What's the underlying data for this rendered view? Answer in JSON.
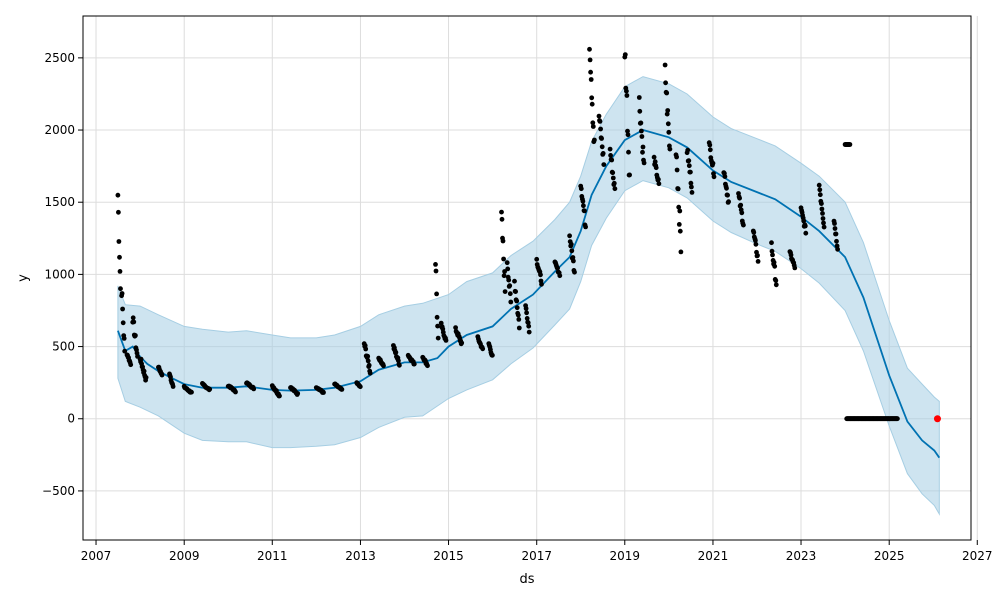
{
  "chart_data": {
    "type": "scatter",
    "title": "",
    "xlabel": "ds",
    "ylabel": "y",
    "x_range": [
      "2006-09-15",
      "2026-11-10"
    ],
    "y_range": [
      -840,
      2790
    ],
    "grid": true,
    "legend": "none",
    "x_ticks": [
      "2007",
      "2009",
      "2011",
      "2013",
      "2015",
      "2017",
      "2019",
      "2021",
      "2023",
      "2025",
      "2027"
    ],
    "y_ticks": [
      -500,
      0,
      500,
      1000,
      1500,
      2000,
      2500
    ],
    "y_tick_labels": [
      "−500",
      "0",
      "500",
      "1000",
      "1500",
      "2000",
      "2500"
    ],
    "colors": {
      "observed": "#000000",
      "forecast": "#0072B2",
      "uncertainty": "#a6cee3",
      "highlight": "#ff0000",
      "grid": "#dddddd"
    },
    "series": [
      {
        "role": "forecast",
        "points": [
          [
            "2007-07-01",
            610
          ],
          [
            "2007-09-01",
            470
          ],
          [
            "2007-11-01",
            500
          ],
          [
            "2008-01-01",
            430
          ],
          [
            "2008-03-01",
            380
          ],
          [
            "2008-06-01",
            330
          ],
          [
            "2008-09-01",
            290
          ],
          [
            "2009-01-01",
            240
          ],
          [
            "2009-06-01",
            215
          ],
          [
            "2010-01-01",
            215
          ],
          [
            "2010-06-01",
            225
          ],
          [
            "2011-01-01",
            200
          ],
          [
            "2011-06-01",
            195
          ],
          [
            "2012-01-01",
            200
          ],
          [
            "2012-06-01",
            215
          ],
          [
            "2013-01-01",
            260
          ],
          [
            "2013-06-01",
            340
          ],
          [
            "2014-01-01",
            390
          ],
          [
            "2014-06-01",
            390
          ],
          [
            "2014-10-01",
            420
          ],
          [
            "2015-01-01",
            500
          ],
          [
            "2015-06-01",
            580
          ],
          [
            "2016-01-01",
            640
          ],
          [
            "2016-06-01",
            760
          ],
          [
            "2016-12-01",
            860
          ],
          [
            "2017-06-01",
            1020
          ],
          [
            "2017-10-01",
            1120
          ],
          [
            "2018-01-01",
            1300
          ],
          [
            "2018-04-01",
            1550
          ],
          [
            "2018-08-01",
            1750
          ],
          [
            "2019-01-01",
            1930
          ],
          [
            "2019-06-01",
            2000
          ],
          [
            "2020-01-01",
            1950
          ],
          [
            "2020-06-01",
            1880
          ],
          [
            "2021-01-01",
            1720
          ],
          [
            "2021-06-01",
            1640
          ],
          [
            "2022-01-01",
            1570
          ],
          [
            "2022-06-01",
            1520
          ],
          [
            "2023-01-01",
            1400
          ],
          [
            "2023-06-01",
            1300
          ],
          [
            "2024-01-01",
            1120
          ],
          [
            "2024-06-01",
            840
          ],
          [
            "2025-01-01",
            300
          ],
          [
            "2025-06-01",
            -20
          ],
          [
            "2025-10-01",
            -150
          ],
          [
            "2026-01-10",
            -220
          ],
          [
            "2026-02-20",
            -270
          ]
        ],
        "band": [
          [
            "2007-07-01",
            280,
            920
          ],
          [
            "2007-09-01",
            120,
            790
          ],
          [
            "2008-01-01",
            80,
            780
          ],
          [
            "2008-06-01",
            20,
            720
          ],
          [
            "2009-01-01",
            -100,
            640
          ],
          [
            "2009-06-01",
            -150,
            620
          ],
          [
            "2010-01-01",
            -160,
            600
          ],
          [
            "2010-06-01",
            -160,
            610
          ],
          [
            "2011-01-01",
            -200,
            580
          ],
          [
            "2011-06-01",
            -200,
            560
          ],
          [
            "2012-01-01",
            -190,
            560
          ],
          [
            "2012-06-01",
            -180,
            580
          ],
          [
            "2013-01-01",
            -130,
            640
          ],
          [
            "2013-06-01",
            -60,
            720
          ],
          [
            "2014-01-01",
            10,
            780
          ],
          [
            "2014-06-01",
            20,
            800
          ],
          [
            "2015-01-01",
            140,
            860
          ],
          [
            "2015-06-01",
            200,
            950
          ],
          [
            "2016-01-01",
            270,
            1010
          ],
          [
            "2016-06-01",
            380,
            1130
          ],
          [
            "2016-12-01",
            490,
            1230
          ],
          [
            "2017-06-01",
            650,
            1380
          ],
          [
            "2017-10-01",
            760,
            1500
          ],
          [
            "2018-01-01",
            950,
            1680
          ],
          [
            "2018-04-01",
            1200,
            1920
          ],
          [
            "2018-08-01",
            1390,
            2110
          ],
          [
            "2019-01-01",
            1580,
            2300
          ],
          [
            "2019-06-01",
            1650,
            2370
          ],
          [
            "2020-01-01",
            1600,
            2320
          ],
          [
            "2020-06-01",
            1530,
            2250
          ],
          [
            "2021-01-01",
            1370,
            2090
          ],
          [
            "2021-06-01",
            1290,
            2010
          ],
          [
            "2022-01-01",
            1210,
            1940
          ],
          [
            "2022-06-01",
            1160,
            1890
          ],
          [
            "2023-01-01",
            1040,
            1770
          ],
          [
            "2023-06-01",
            940,
            1680
          ],
          [
            "2024-01-01",
            750,
            1500
          ],
          [
            "2024-06-01",
            470,
            1220
          ],
          [
            "2025-01-01",
            -50,
            680
          ],
          [
            "2025-06-01",
            -380,
            350
          ],
          [
            "2025-10-01",
            -520,
            240
          ],
          [
            "2026-01-10",
            -600,
            150
          ],
          [
            "2026-02-20",
            -660,
            120
          ]
        ]
      },
      {
        "role": "observed",
        "segments": [
          [
            "2007-07-01",
            1550,
            900,
            22
          ],
          [
            "2007-08-01",
            900,
            450,
            26
          ],
          [
            "2007-09-15",
            450,
            380,
            30
          ],
          [
            "2007-11-01",
            700,
            420,
            40
          ],
          [
            "2008-01-01",
            420,
            270,
            50
          ],
          [
            "2008-06-01",
            360,
            300,
            30
          ],
          [
            "2008-09-01",
            320,
            220,
            30
          ],
          [
            "2009-01-01",
            220,
            180,
            60
          ],
          [
            "2009-06-01",
            240,
            200,
            60
          ],
          [
            "2010-01-01",
            230,
            190,
            60
          ],
          [
            "2010-06-01",
            250,
            210,
            60
          ],
          [
            "2011-01-01",
            230,
            160,
            60
          ],
          [
            "2011-06-01",
            220,
            170,
            60
          ],
          [
            "2012-01-01",
            220,
            180,
            60
          ],
          [
            "2012-06-01",
            240,
            200,
            60
          ],
          [
            "2012-12-01",
            250,
            220,
            30
          ],
          [
            "2013-02-01",
            520,
            330,
            50
          ],
          [
            "2013-06-01",
            420,
            370,
            40
          ],
          [
            "2013-10-01",
            500,
            380,
            50
          ],
          [
            "2014-02-01",
            440,
            380,
            50
          ],
          [
            "2014-06-01",
            430,
            370,
            40
          ],
          [
            "2014-09-15",
            1110,
            500,
            22
          ],
          [
            "2014-11-01",
            650,
            540,
            40
          ],
          [
            "2015-03-01",
            620,
            520,
            50
          ],
          [
            "2015-09-01",
            560,
            480,
            40
          ],
          [
            "2015-12-01",
            520,
            430,
            30
          ],
          [
            "2016-03-15",
            1400,
            900,
            30
          ],
          [
            "2016-05-01",
            1100,
            800,
            30
          ],
          [
            "2016-07-01",
            950,
            650,
            40
          ],
          [
            "2016-10-01",
            780,
            620,
            30
          ],
          [
            "2017-01-01",
            1100,
            950,
            40
          ],
          [
            "2017-06-01",
            1080,
            1000,
            40
          ],
          [
            "2017-10-01",
            1260,
            1030,
            40
          ],
          [
            "2018-01-01",
            1640,
            1340,
            40
          ],
          [
            "2018-03-15",
            2640,
            1870,
            40
          ],
          [
            "2018-06-01",
            2100,
            1780,
            40
          ],
          [
            "2018-09-01",
            1860,
            1580,
            40
          ],
          [
            "2019-01-01",
            2570,
            1700,
            40
          ],
          [
            "2019-05-01",
            2200,
            1750,
            40
          ],
          [
            "2019-09-01",
            1800,
            1620,
            40
          ],
          [
            "2019-12-01",
            2400,
            1850,
            40
          ],
          [
            "2020-03-01",
            1900,
            1200,
            40
          ],
          [
            "2020-06-01",
            1860,
            1600,
            40
          ],
          [
            "2020-12-01",
            1900,
            1700,
            40
          ],
          [
            "2021-04-01",
            1720,
            1500,
            40
          ],
          [
            "2021-08-01",
            1550,
            1350,
            40
          ],
          [
            "2021-12-01",
            1300,
            1100,
            40
          ],
          [
            "2022-05-01",
            1200,
            940,
            40
          ],
          [
            "2022-10-01",
            1150,
            1050,
            40
          ],
          [
            "2023-01-01",
            1450,
            1300,
            40
          ],
          [
            "2023-06-01",
            1620,
            1350,
            40
          ],
          [
            "2023-10-01",
            1380,
            1190,
            30
          ],
          [
            "2024-01-01",
            1900,
            1900,
            40
          ],
          [
            "2024-01-15",
            0,
            0,
            420
          ]
        ]
      },
      {
        "role": "highlight",
        "points": [
          [
            "2026-02-05",
            0
          ]
        ]
      }
    ]
  }
}
